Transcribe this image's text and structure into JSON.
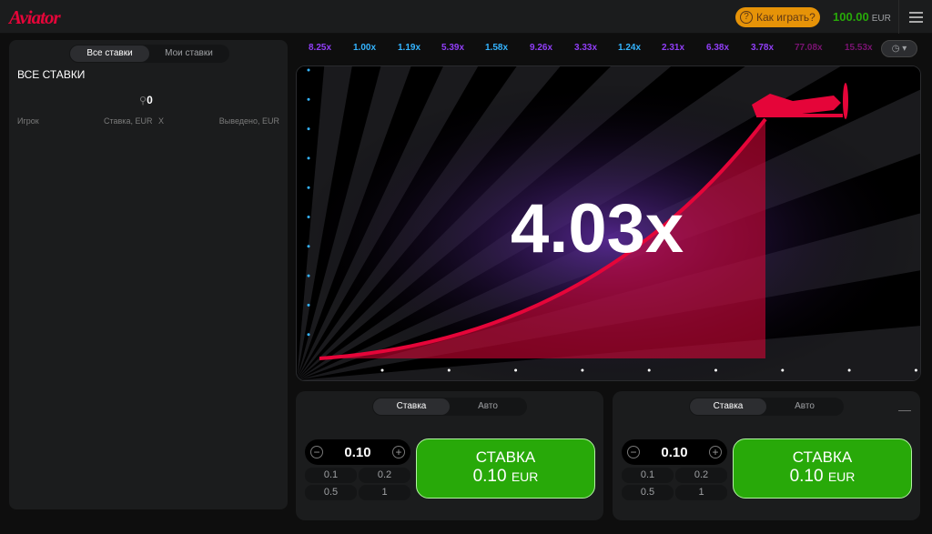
{
  "header": {
    "logo": "Aviator",
    "how_to_play": "Как играть?",
    "balance": "100.00",
    "currency": "EUR"
  },
  "left_panel": {
    "tabs": [
      "Все ставки",
      "Мои ставки"
    ],
    "title": "ВСЕ СТАВКИ",
    "players_count": "0",
    "columns": [
      "Игрок",
      "Ставка, EUR",
      "X",
      "Выведено, EUR"
    ]
  },
  "history": [
    {
      "v": "8.25x",
      "color": "#913ef8"
    },
    {
      "v": "1.00x",
      "color": "#34b4ff"
    },
    {
      "v": "1.19x",
      "color": "#34b4ff"
    },
    {
      "v": "5.39x",
      "color": "#913ef8"
    },
    {
      "v": "1.58x",
      "color": "#34b4ff"
    },
    {
      "v": "9.26x",
      "color": "#913ef8"
    },
    {
      "v": "3.33x",
      "color": "#913ef8"
    },
    {
      "v": "1.24x",
      "color": "#34b4ff"
    },
    {
      "v": "2.31x",
      "color": "#913ef8"
    },
    {
      "v": "6.38x",
      "color": "#913ef8"
    },
    {
      "v": "3.78x",
      "color": "#913ef8"
    },
    {
      "v": "77.08x",
      "color": "#c017b4"
    },
    {
      "v": "15.53x",
      "color": "#c017b4"
    }
  ],
  "game": {
    "multiplier": "4.03x",
    "accent": "#e50539"
  },
  "bet_panels": [
    {
      "tabs": [
        "Ставка",
        "Авто"
      ],
      "amount": "0.10",
      "quick": [
        "0.1",
        "0.2",
        "0.5",
        "1"
      ],
      "button": "СТАВКА",
      "button_amount": "0.10",
      "currency": "EUR"
    },
    {
      "tabs": [
        "Ставка",
        "Авто"
      ],
      "amount": "0.10",
      "quick": [
        "0.1",
        "0.2",
        "0.5",
        "1"
      ],
      "button": "СТАВКА",
      "button_amount": "0.10",
      "currency": "EUR",
      "remove": "—"
    }
  ]
}
